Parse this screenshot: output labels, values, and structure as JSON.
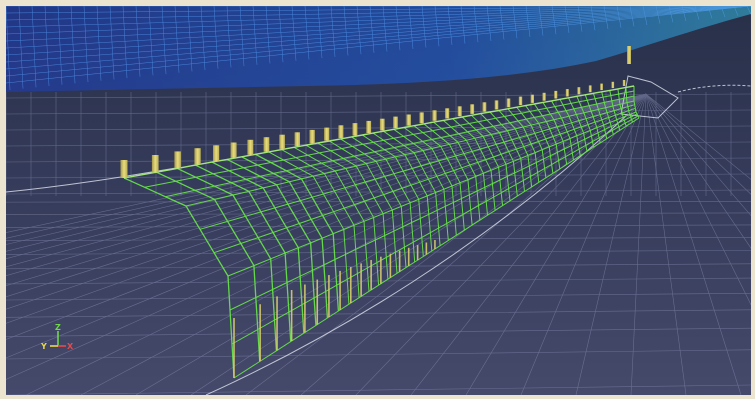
{
  "viewport": {
    "background_top": "#283049",
    "background_bottom": "#45496a",
    "frame_color": "#ece4cf"
  },
  "colors": {
    "hull_wireframe": "#66e04a",
    "hull_wireframe_light": "#a6f07a",
    "sensor_posts": "#d8cc6e",
    "background_grid": "#8a90b4",
    "dense_mesh_blue": "#1a5cff",
    "dense_mesh_cyan": "#38d7ff",
    "outline_white": "#d6dbe8"
  },
  "orientation_axes": {
    "z_label": "Z",
    "y_label": "Y",
    "x_label": "X",
    "z_color": "#6ed84a",
    "y_color": "#e8d84a",
    "x_color": "#e84a4a"
  }
}
